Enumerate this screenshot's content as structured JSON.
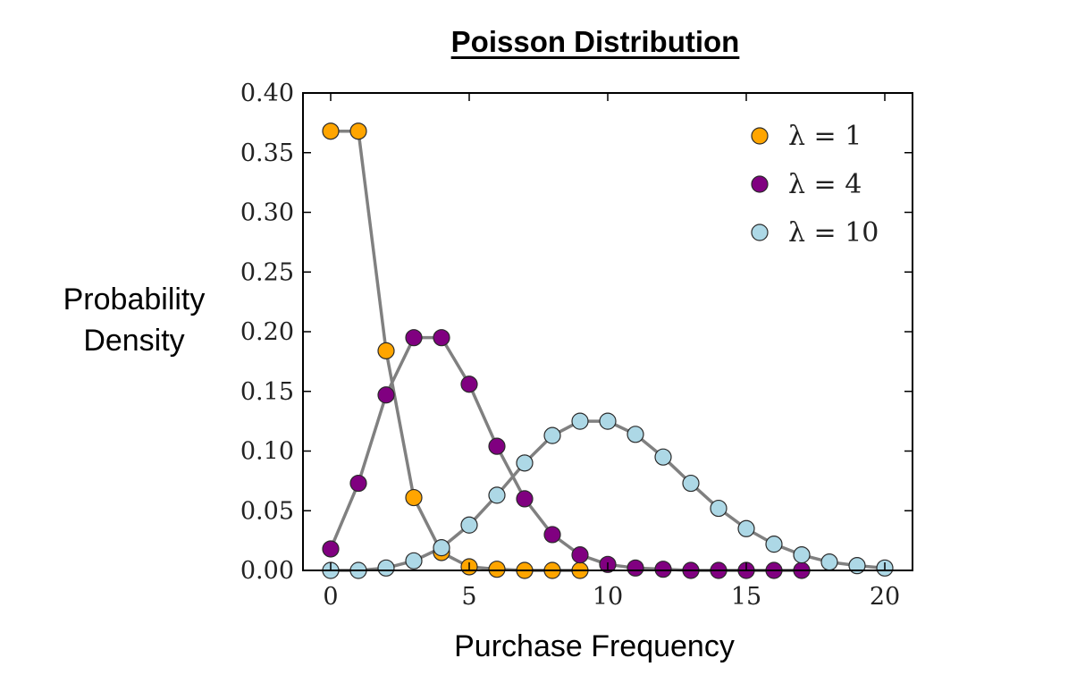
{
  "chart_data": {
    "type": "line",
    "title": "Poisson Distribution",
    "xlabel": "Purchase Frequency",
    "ylabel": "Probability Density",
    "xlim": [
      -1,
      21
    ],
    "ylim": [
      0,
      0.4
    ],
    "xticks": [
      0,
      5,
      10,
      15,
      20
    ],
    "xtick_labels": [
      "0",
      "5",
      "10",
      "15",
      "20"
    ],
    "yticks": [
      0,
      0.05,
      0.1,
      0.15,
      0.2,
      0.25,
      0.3,
      0.35,
      0.4
    ],
    "ytick_labels": [
      "0.00",
      "0.05",
      "0.10",
      "0.15",
      "0.20",
      "0.25",
      "0.30",
      "0.35",
      "0.40"
    ],
    "grid": false,
    "legend_position": "top-right",
    "line_color": "#808080",
    "series": [
      {
        "name": "λ = 1",
        "color": "#ffa500",
        "x": [
          0,
          1,
          2,
          3,
          4,
          5,
          6,
          7,
          8,
          9
        ],
        "values": [
          0.368,
          0.368,
          0.184,
          0.061,
          0.015,
          0.003,
          0.001,
          0.0,
          0.0,
          0.0
        ]
      },
      {
        "name": "λ = 4",
        "color": "#800080",
        "x": [
          0,
          1,
          2,
          3,
          4,
          5,
          6,
          7,
          8,
          9,
          10,
          11,
          12,
          13,
          14,
          15,
          16,
          17
        ],
        "values": [
          0.018,
          0.073,
          0.147,
          0.195,
          0.195,
          0.156,
          0.104,
          0.06,
          0.03,
          0.013,
          0.005,
          0.002,
          0.001,
          0.0,
          0.0,
          0.0,
          0.0,
          0.0
        ]
      },
      {
        "name": "λ = 10",
        "color": "#add8e6",
        "x": [
          0,
          1,
          2,
          3,
          4,
          5,
          6,
          7,
          8,
          9,
          10,
          11,
          12,
          13,
          14,
          15,
          16,
          17,
          18,
          19,
          20
        ],
        "values": [
          0.0,
          0.0,
          0.002,
          0.008,
          0.019,
          0.038,
          0.063,
          0.09,
          0.113,
          0.125,
          0.125,
          0.114,
          0.095,
          0.073,
          0.052,
          0.035,
          0.022,
          0.013,
          0.007,
          0.004,
          0.002
        ]
      }
    ]
  }
}
